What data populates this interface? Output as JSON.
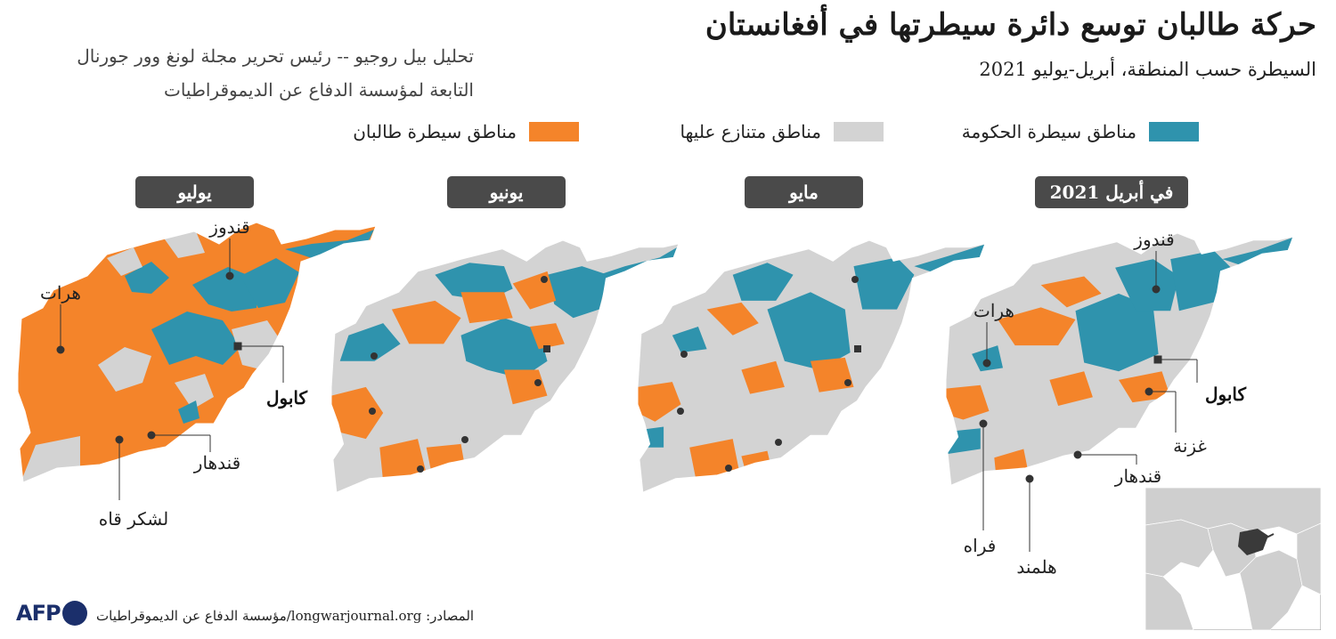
{
  "header": {
    "title": "حركة طالبان توسع دائرة سيطرتها في أفغانستان",
    "subtitle": "السيطرة حسب المنطقة، أبريل-يوليو 2021",
    "credit_line1": "تحليل بيل روجيو -- رئيس تحرير مجلة لونغ وور جورنال",
    "credit_line2": "التابعة لمؤسسة الدفاع عن الديموقراطيات"
  },
  "legend": {
    "government": {
      "label": "مناطق سيطرة الحكومة",
      "color": "#2f93ad"
    },
    "contested": {
      "label": "مناطق متنازع عليها",
      "color": "#d3d3d3"
    },
    "taliban": {
      "label": "مناطق سيطرة طالبان",
      "color": "#f4842a"
    }
  },
  "panels": {
    "july": {
      "label": "يوليو"
    },
    "june": {
      "label": "يونيو"
    },
    "may": {
      "label": "مايو"
    },
    "april": {
      "label": "في أبريل 2021"
    }
  },
  "cities": {
    "kunduz": "قندوز",
    "herat": "هرات",
    "kabul": "كابول",
    "kandahar": "قندهار",
    "lashkar_gah": "لشكر قاه",
    "ghazni": "غزنة",
    "farah": "فراه",
    "helmand": "هلمند"
  },
  "footer": {
    "source": "المصادر: longwarjournal.org/مؤسسة الدفاع عن الديموقراطيات",
    "logo": "AFP"
  }
}
